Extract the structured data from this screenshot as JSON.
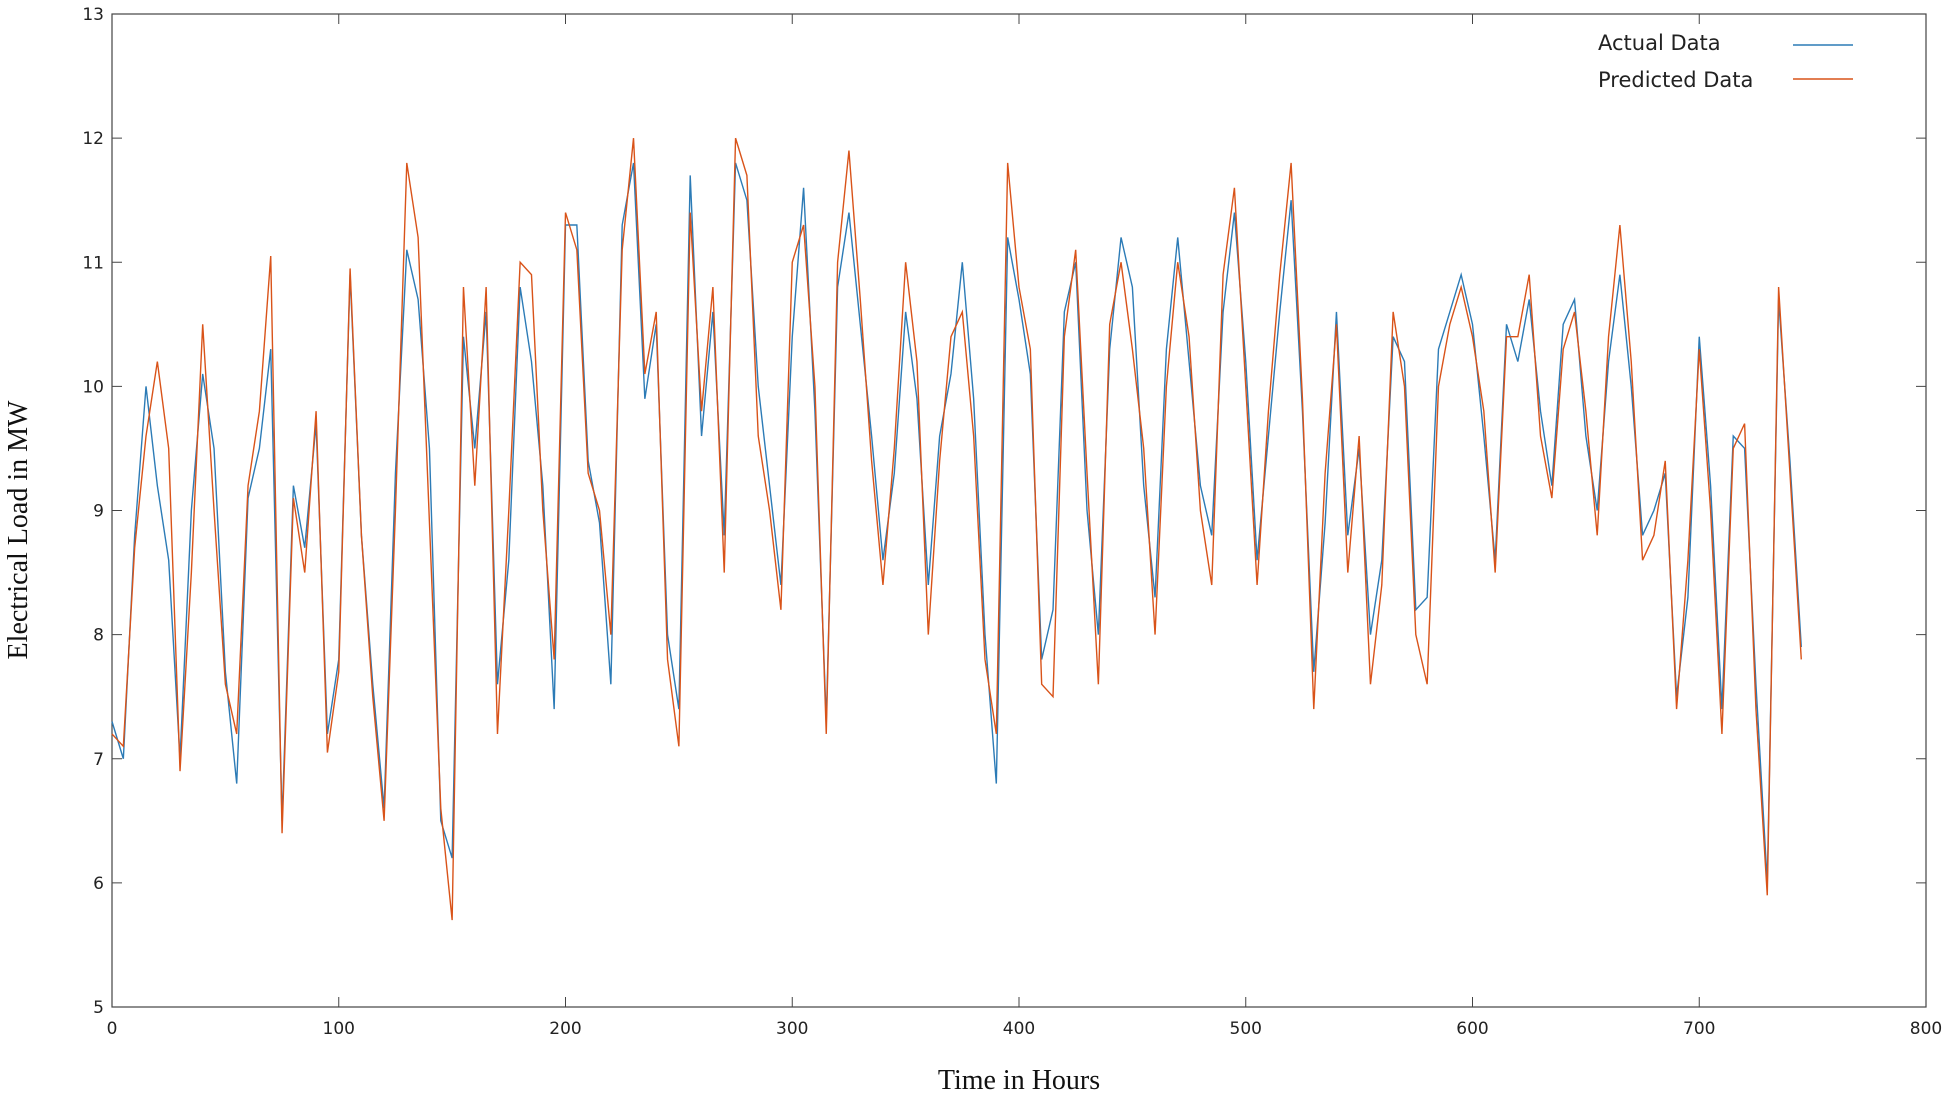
{
  "chart_data": {
    "type": "line",
    "x_label": "Time in Hours",
    "y_label": "Electrical Load in MW",
    "x": [
      0,
      5,
      10,
      15,
      20,
      25,
      30,
      35,
      40,
      45,
      50,
      55,
      60,
      65,
      70,
      75,
      80,
      85,
      90,
      95,
      100,
      105,
      110,
      115,
      120,
      125,
      130,
      135,
      140,
      145,
      150,
      155,
      160,
      165,
      170,
      175,
      180,
      185,
      190,
      195,
      200,
      205,
      210,
      215,
      220,
      225,
      230,
      235,
      240,
      245,
      250,
      255,
      260,
      265,
      270,
      275,
      280,
      285,
      290,
      295,
      300,
      305,
      310,
      315,
      320,
      325,
      330,
      335,
      340,
      345,
      350,
      355,
      360,
      365,
      370,
      375,
      380,
      385,
      390,
      395,
      400,
      405,
      410,
      415,
      420,
      425,
      430,
      435,
      440,
      445,
      450,
      455,
      460,
      465,
      470,
      475,
      480,
      485,
      490,
      495,
      500,
      505,
      510,
      515,
      520,
      525,
      530,
      535,
      540,
      545,
      550,
      555,
      560,
      565,
      570,
      575,
      580,
      585,
      590,
      595,
      600,
      605,
      610,
      615,
      620,
      625,
      630,
      635,
      640,
      645,
      650,
      655,
      660,
      665,
      670,
      675,
      680,
      685,
      690,
      695,
      700,
      705,
      710,
      715,
      720,
      725,
      730,
      735,
      740,
      745
    ],
    "series": [
      {
        "name": "Actual Data",
        "color": "#2c7bb6",
        "values": [
          7.3,
          7.0,
          8.8,
          10.0,
          9.2,
          8.6,
          7.0,
          9.0,
          10.1,
          9.5,
          7.7,
          6.8,
          9.1,
          9.5,
          10.3,
          6.5,
          9.2,
          8.7,
          9.7,
          7.2,
          7.8,
          10.9,
          8.8,
          7.6,
          6.6,
          9.3,
          11.1,
          10.7,
          9.5,
          6.5,
          6.2,
          10.4,
          9.5,
          10.6,
          7.6,
          8.6,
          10.8,
          10.2,
          9.2,
          7.4,
          11.3,
          11.3,
          9.4,
          8.9,
          7.6,
          11.3,
          11.8,
          9.9,
          10.5,
          8.0,
          7.4,
          11.7,
          9.6,
          10.6,
          8.8,
          11.8,
          11.5,
          10.0,
          9.2,
          8.4,
          10.4,
          11.6,
          9.8,
          7.3,
          10.8,
          11.4,
          10.5,
          9.6,
          8.6,
          9.3,
          10.6,
          9.9,
          8.4,
          9.6,
          10.1,
          11.0,
          9.9,
          8.0,
          6.8,
          11.2,
          10.7,
          10.1,
          7.8,
          8.2,
          10.6,
          11.0,
          9.0,
          8.0,
          10.3,
          11.2,
          10.8,
          9.2,
          8.3,
          10.3,
          11.2,
          10.2,
          9.2,
          8.8,
          10.6,
          11.4,
          10.2,
          8.6,
          9.6,
          10.6,
          11.5,
          9.8,
          7.7,
          8.9,
          10.6,
          8.8,
          9.5,
          8.0,
          8.6,
          10.4,
          10.2,
          8.2,
          8.3,
          10.3,
          10.6,
          10.9,
          10.5,
          9.6,
          8.6,
          10.5,
          10.2,
          10.7,
          9.8,
          9.2,
          10.5,
          10.7,
          9.6,
          9.0,
          10.2,
          10.9,
          10.0,
          8.8,
          9.0,
          9.3,
          7.5,
          8.3,
          10.4,
          9.2,
          7.4,
          9.6,
          9.5,
          7.6,
          6.0,
          10.7,
          9.4,
          7.9
        ]
      },
      {
        "name": "Predicted Data",
        "color": "#d95319",
        "values": [
          7.2,
          7.1,
          8.7,
          9.6,
          10.2,
          9.5,
          6.9,
          8.5,
          10.5,
          9.0,
          7.6,
          7.2,
          9.2,
          9.8,
          11.05,
          6.4,
          9.1,
          8.5,
          9.8,
          7.05,
          7.7,
          10.95,
          8.8,
          7.5,
          6.5,
          9.0,
          11.8,
          11.2,
          8.9,
          6.6,
          5.7,
          10.8,
          9.2,
          10.8,
          7.2,
          9.0,
          11.0,
          10.9,
          9.0,
          7.8,
          11.4,
          11.1,
          9.3,
          9.0,
          8.0,
          11.1,
          12.0,
          10.1,
          10.6,
          7.8,
          7.1,
          11.4,
          9.8,
          10.8,
          8.5,
          12.0,
          11.7,
          9.6,
          9.0,
          8.2,
          11.0,
          11.3,
          10.0,
          7.2,
          11.0,
          11.9,
          10.7,
          9.4,
          8.4,
          9.5,
          11.0,
          10.2,
          8.0,
          9.4,
          10.4,
          10.6,
          9.6,
          7.8,
          7.2,
          11.8,
          10.8,
          10.3,
          7.6,
          7.5,
          10.4,
          11.1,
          9.3,
          7.6,
          10.5,
          11.0,
          10.3,
          9.5,
          8.0,
          10.0,
          11.0,
          10.4,
          9.0,
          8.4,
          10.9,
          11.6,
          10.0,
          8.4,
          9.8,
          10.9,
          11.8,
          9.9,
          7.4,
          9.3,
          10.5,
          8.5,
          9.6,
          7.6,
          8.4,
          10.6,
          10.0,
          8.0,
          7.6,
          10.0,
          10.5,
          10.8,
          10.4,
          9.8,
          8.5,
          10.4,
          10.4,
          10.9,
          9.6,
          9.1,
          10.3,
          10.6,
          9.8,
          8.8,
          10.4,
          11.3,
          10.2,
          8.6,
          8.8,
          9.4,
          7.4,
          8.6,
          10.3,
          9.0,
          7.2,
          9.5,
          9.7,
          7.4,
          5.9,
          10.8,
          9.3,
          7.8
        ]
      }
    ],
    "xlim": [
      0,
      800
    ],
    "xticks": [
      0,
      100,
      200,
      300,
      400,
      500,
      600,
      700,
      800
    ],
    "ylim": [
      5,
      13
    ],
    "yticks": [
      5,
      6,
      7,
      8,
      9,
      10,
      11,
      12,
      13
    ],
    "grid": false,
    "legend": "upper-right"
  }
}
